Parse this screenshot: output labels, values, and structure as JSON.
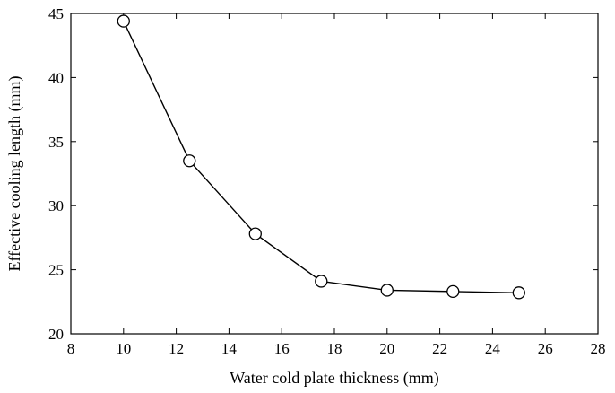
{
  "chart_data": {
    "type": "line",
    "xlabel": "Water cold plate thickness (mm)",
    "ylabel": "Effective cooling length (mm)",
    "xlim": [
      8,
      28
    ],
    "ylim": [
      20,
      45
    ],
    "xticks": [
      8,
      10,
      12,
      14,
      16,
      18,
      20,
      22,
      24,
      26,
      28
    ],
    "yticks": [
      20,
      25,
      30,
      35,
      40,
      45
    ],
    "grid": false,
    "series": [
      {
        "x": [
          10,
          12.5,
          15,
          17.5,
          20,
          22.5,
          25
        ],
        "y": [
          44.4,
          33.5,
          27.8,
          24.1,
          23.4,
          23.3,
          23.2
        ],
        "marker": "open-circle",
        "color": "#000000"
      }
    ]
  }
}
